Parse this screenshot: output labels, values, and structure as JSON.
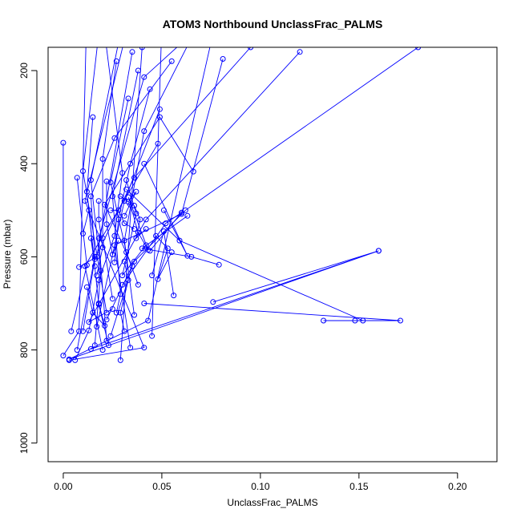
{
  "chart_data": {
    "type": "line",
    "title": "ATOM3 Northbound UnclassFrac_PALMS",
    "xlabel": "UnclassFrac_PALMS",
    "ylabel": "Pressure (mbar)",
    "xlim": [
      -0.0077,
      0.22
    ],
    "ylim": [
      1040,
      150
    ],
    "y_reversed": true,
    "x_ticks": [
      0.0,
      0.05,
      0.1,
      0.15,
      0.2
    ],
    "x_tick_labels": [
      "0.00",
      "0.05",
      "0.10",
      "0.15",
      "0.20"
    ],
    "y_ticks": [
      200,
      400,
      600,
      800,
      1000
    ],
    "y_tick_labels": [
      "200",
      "400",
      "600",
      "800",
      "1000"
    ],
    "grid": false,
    "series_color": "#0000ff",
    "series": [
      {
        "values": [
          [
            0.0,
            355
          ],
          [
            0.0,
            668
          ]
        ]
      },
      {
        "values": [
          [
            0.021,
            120
          ],
          [
            0.03,
            420
          ],
          [
            0.026,
            555
          ],
          [
            0.018,
            650
          ],
          [
            0.013,
            758
          ],
          [
            0.006,
            822
          ]
        ]
      },
      {
        "values": [
          [
            0.033,
            100
          ],
          [
            0.011,
            480
          ],
          [
            0.041,
            795
          ],
          [
            0.003,
            822
          ]
        ]
      },
      {
        "values": [
          [
            0.012,
            60
          ],
          [
            0.008,
            760
          ],
          [
            0.0,
            812
          ]
        ]
      },
      {
        "values": [
          [
            0.076,
            120
          ],
          [
            0.043,
            737
          ],
          [
            0.003,
            820
          ],
          [
            0.16,
            587
          ],
          [
            0.014,
            798
          ]
        ]
      },
      {
        "values": [
          [
            0.04,
            150
          ],
          [
            0.029,
            822
          ]
        ]
      },
      {
        "values": [
          [
            0.05,
            100
          ],
          [
            0.045,
            770
          ]
        ]
      },
      {
        "values": [
          [
            0.065,
            130
          ],
          [
            0.041,
            330
          ],
          [
            0.031,
            565
          ],
          [
            0.036,
            725
          ]
        ]
      },
      {
        "values": [
          [
            0.081,
            175
          ],
          [
            0.06,
            508
          ],
          [
            0.026,
            575
          ],
          [
            0.034,
            795
          ]
        ]
      },
      {
        "values": [
          [
            0.068,
            110
          ],
          [
            0.041,
            214
          ],
          [
            0.018,
            560
          ],
          [
            0.022,
            780
          ]
        ]
      },
      {
        "values": [
          [
            0.049,
            283
          ],
          [
            0.031,
            480
          ],
          [
            0.017,
            750
          ]
        ]
      },
      {
        "values": [
          [
            0.048,
            357
          ],
          [
            0.011,
            620
          ],
          [
            0.02,
            800
          ]
        ]
      },
      {
        "values": [
          [
            0.055,
            180
          ],
          [
            0.026,
            345
          ],
          [
            0.014,
            470
          ],
          [
            0.016,
            600
          ],
          [
            0.007,
            800
          ]
        ]
      },
      {
        "values": [
          [
            0.066,
            417
          ],
          [
            0.049,
            300
          ],
          [
            0.021,
            488
          ],
          [
            0.035,
            620
          ],
          [
            0.024,
            770
          ]
        ]
      },
      {
        "values": [
          [
            0.18,
            150
          ],
          [
            0.062,
            500
          ],
          [
            0.036,
            610
          ],
          [
            0.022,
            735
          ]
        ]
      },
      {
        "values": [
          [
            0.12,
            160
          ],
          [
            0.042,
            520
          ],
          [
            0.013,
            740
          ],
          [
            0.025,
            712
          ]
        ]
      },
      {
        "values": [
          [
            0.095,
            150
          ],
          [
            0.036,
            430
          ],
          [
            0.016,
            605
          ],
          [
            0.01,
            760
          ]
        ]
      },
      {
        "values": [
          [
            0.007,
            430
          ],
          [
            0.012,
            618
          ],
          [
            0.004,
            760
          ]
        ]
      },
      {
        "values": [
          [
            0.018,
            120
          ],
          [
            0.01,
            416
          ],
          [
            0.022,
            720
          ]
        ]
      },
      {
        "values": [
          [
            0.028,
            140
          ],
          [
            0.014,
            435
          ],
          [
            0.019,
            630
          ],
          [
            0.016,
            790
          ]
        ]
      },
      {
        "values": [
          [
            0.035,
            160
          ],
          [
            0.017,
            600
          ],
          [
            0.008,
            622
          ]
        ]
      },
      {
        "values": [
          [
            0.038,
            200
          ],
          [
            0.025,
            470
          ],
          [
            0.029,
            680
          ],
          [
            0.027,
            720
          ]
        ]
      },
      {
        "values": [
          [
            0.027,
            180
          ],
          [
            0.02,
            390
          ],
          [
            0.02,
            560
          ],
          [
            0.025,
            690
          ]
        ]
      },
      {
        "values": [
          [
            0.015,
            300
          ],
          [
            0.012,
            460
          ],
          [
            0.018,
            702
          ],
          [
            0.023,
            790
          ]
        ]
      },
      {
        "values": [
          [
            0.033,
            260
          ],
          [
            0.024,
            440
          ],
          [
            0.032,
            590
          ],
          [
            0.038,
            660
          ]
        ]
      },
      {
        "values": [
          [
            0.044,
            240
          ],
          [
            0.034,
            400
          ],
          [
            0.028,
            520
          ],
          [
            0.026,
            612
          ]
        ]
      },
      {
        "values": [
          [
            0.024,
            500
          ],
          [
            0.028,
            500
          ],
          [
            0.031,
            528
          ],
          [
            0.036,
            540
          ]
        ]
      },
      {
        "values": [
          [
            0.063,
            512
          ],
          [
            0.04,
            582
          ],
          [
            0.065,
            600
          ],
          [
            0.079,
            617
          ]
        ]
      },
      {
        "values": [
          [
            0.032,
            455
          ],
          [
            0.059,
            565
          ],
          [
            0.152,
            737
          ]
        ]
      },
      {
        "values": [
          [
            0.041,
            400
          ],
          [
            0.063,
            598
          ],
          [
            0.051,
            500
          ]
        ]
      },
      {
        "values": [
          [
            0.041,
            700
          ],
          [
            0.171,
            737
          ],
          [
            0.132,
            737
          ],
          [
            0.148,
            737
          ]
        ]
      },
      {
        "values": [
          [
            0.045,
            640
          ],
          [
            0.051,
            545
          ],
          [
            0.056,
            683
          ]
        ]
      },
      {
        "values": [
          [
            0.047,
            555
          ],
          [
            0.053,
            582
          ],
          [
            0.048,
            648
          ],
          [
            0.055,
            590
          ]
        ]
      },
      {
        "values": [
          [
            0.076,
            697
          ],
          [
            0.16,
            587
          ]
        ]
      },
      {
        "values": [
          [
            0.03,
            660
          ],
          [
            0.052,
            528
          ],
          [
            0.06,
            505
          ],
          [
            0.044,
            587
          ]
        ]
      },
      {
        "values": [
          [
            0.032,
            435
          ],
          [
            0.037,
            507
          ],
          [
            0.03,
            640
          ],
          [
            0.042,
            575
          ]
        ]
      },
      {
        "values": [
          [
            0.034,
            488
          ],
          [
            0.038,
            548
          ],
          [
            0.043,
            585
          ],
          [
            0.033,
            472
          ]
        ]
      },
      {
        "values": [
          [
            0.029,
            470
          ],
          [
            0.033,
            482
          ],
          [
            0.037,
            460
          ],
          [
            0.031,
            512
          ]
        ]
      },
      {
        "values": [
          [
            0.022,
            438
          ],
          [
            0.022,
            530
          ],
          [
            0.025,
            595
          ],
          [
            0.028,
            565
          ]
        ]
      },
      {
        "values": [
          [
            0.018,
            480
          ],
          [
            0.018,
            520
          ],
          [
            0.02,
            580
          ],
          [
            0.017,
            640
          ]
        ]
      },
      {
        "values": [
          [
            0.01,
            550
          ],
          [
            0.013,
            500
          ],
          [
            0.016,
            620
          ],
          [
            0.014,
            560
          ]
        ]
      },
      {
        "values": [
          [
            0.012,
            665
          ],
          [
            0.015,
            720
          ],
          [
            0.021,
            748
          ],
          [
            0.018,
            700
          ]
        ]
      },
      {
        "values": [
          [
            0.031,
            610
          ],
          [
            0.033,
            650
          ],
          [
            0.029,
            720
          ],
          [
            0.031,
            760
          ]
        ]
      },
      {
        "values": [
          [
            0.036,
            490
          ],
          [
            0.039,
            520
          ],
          [
            0.037,
            560
          ],
          [
            0.042,
            540
          ]
        ]
      }
    ]
  }
}
